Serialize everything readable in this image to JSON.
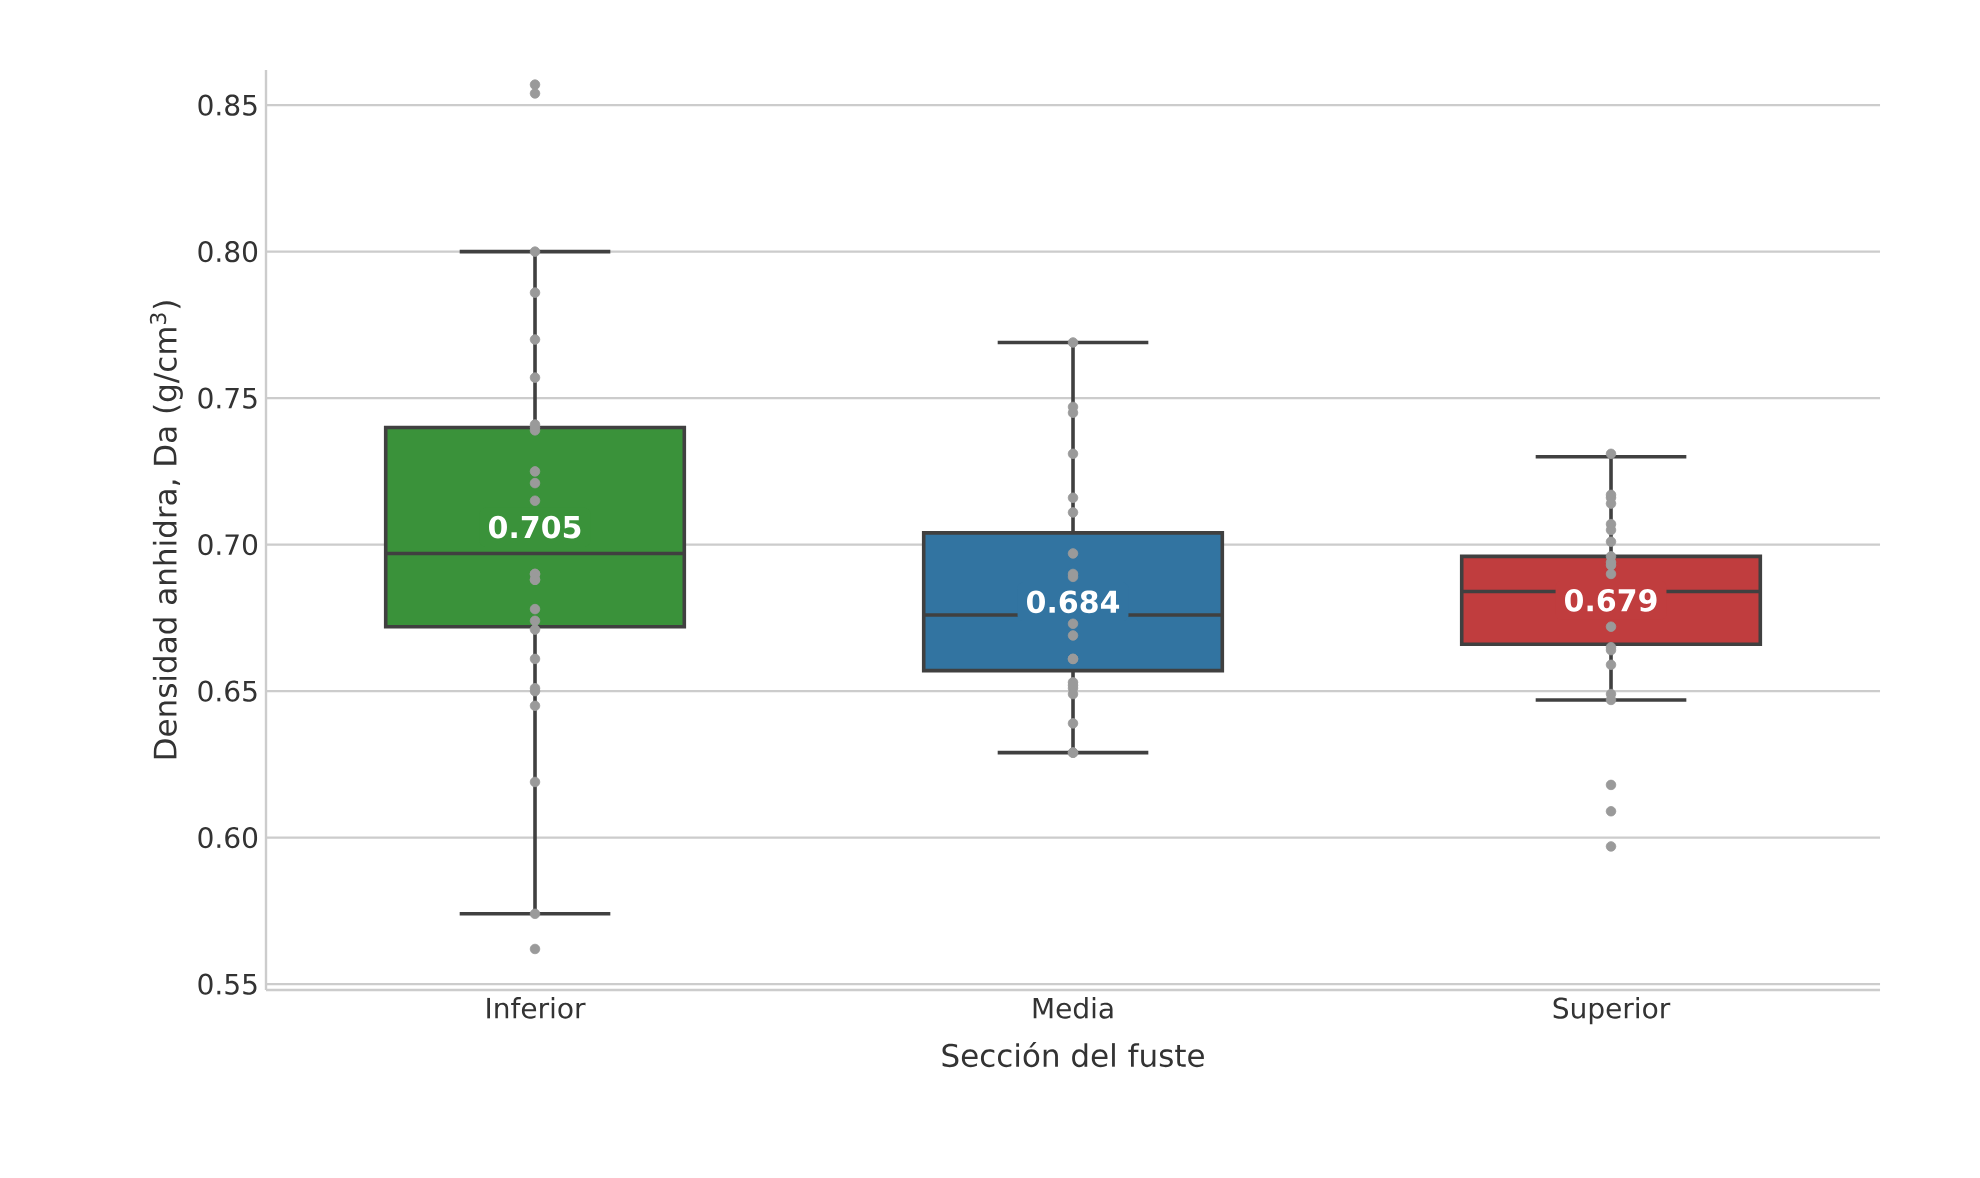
{
  "chart_data": {
    "type": "box",
    "xlabel": "Sección del fuste",
    "ylabel": "Densidad anhidra, Da (g/cm$^{3}$)",
    "categories": [
      "Inferior",
      "Media",
      "Superior"
    ],
    "colors": [
      "#3a923a",
      "#3274a1",
      "#c03d3e"
    ],
    "boxes": [
      {
        "low": 0.574,
        "q1": 0.672,
        "median": 0.697,
        "q3": 0.74,
        "high": 0.8
      },
      {
        "low": 0.629,
        "q1": 0.657,
        "median": 0.676,
        "q3": 0.704,
        "high": 0.769
      },
      {
        "low": 0.647,
        "q1": 0.666,
        "median": 0.684,
        "q3": 0.696,
        "high": 0.73
      }
    ],
    "annotations": [
      "0.705",
      "0.684",
      "0.679"
    ],
    "series": [
      {
        "type": "scatter",
        "color": "#9a9a9a",
        "x": [
          "Inferior",
          "Inferior",
          "Inferior",
          "Inferior",
          "Inferior",
          "Inferior",
          "Inferior",
          "Inferior",
          "Inferior",
          "Inferior",
          "Inferior",
          "Inferior",
          "Inferior",
          "Inferior",
          "Inferior",
          "Inferior",
          "Inferior",
          "Inferior",
          "Inferior",
          "Inferior",
          "Inferior",
          "Inferior",
          "Inferior",
          "Inferior",
          "Inferior",
          "Inferior",
          "Media",
          "Media",
          "Media",
          "Media",
          "Media",
          "Media",
          "Media",
          "Media",
          "Media",
          "Media",
          "Media",
          "Media",
          "Media",
          "Media",
          "Media",
          "Media",
          "Media",
          "Media",
          "Media",
          "Media",
          "Superior",
          "Superior",
          "Superior",
          "Superior",
          "Superior",
          "Superior",
          "Superior",
          "Superior",
          "Superior",
          "Superior",
          "Superior",
          "Superior",
          "Superior",
          "Superior",
          "Superior",
          "Superior",
          "Superior",
          "Superior",
          "Superior",
          "Superior"
        ],
        "values": [
          0.854,
          0.857,
          0.8,
          0.786,
          0.77,
          0.757,
          0.741,
          0.74,
          0.739,
          0.725,
          0.721,
          0.715,
          0.69,
          0.688,
          0.69,
          0.688,
          0.678,
          0.674,
          0.671,
          0.661,
          0.651,
          0.65,
          0.645,
          0.619,
          0.574,
          0.562,
          0.769,
          0.747,
          0.745,
          0.731,
          0.716,
          0.711,
          0.697,
          0.69,
          0.689,
          0.673,
          0.669,
          0.661,
          0.661,
          0.653,
          0.651,
          0.652,
          0.649,
          0.639,
          0.629,
          0.629,
          0.731,
          0.716,
          0.714,
          0.717,
          0.707,
          0.705,
          0.701,
          0.696,
          0.694,
          0.693,
          0.69,
          0.672,
          0.665,
          0.664,
          0.659,
          0.649,
          0.647,
          0.618,
          0.609,
          0.597
        ]
      }
    ],
    "ylim": [
      0.548,
      0.862
    ],
    "yticks": [
      {
        "value": 0.55,
        "label": "0.55"
      },
      {
        "value": 0.6,
        "label": "0.60"
      },
      {
        "value": 0.65,
        "label": "0.65"
      },
      {
        "value": 0.7,
        "label": "0.70"
      },
      {
        "value": 0.75,
        "label": "0.75"
      },
      {
        "value": 0.8,
        "label": "0.80"
      },
      0.85
    ],
    "grid": "y",
    "marker": "circle"
  }
}
